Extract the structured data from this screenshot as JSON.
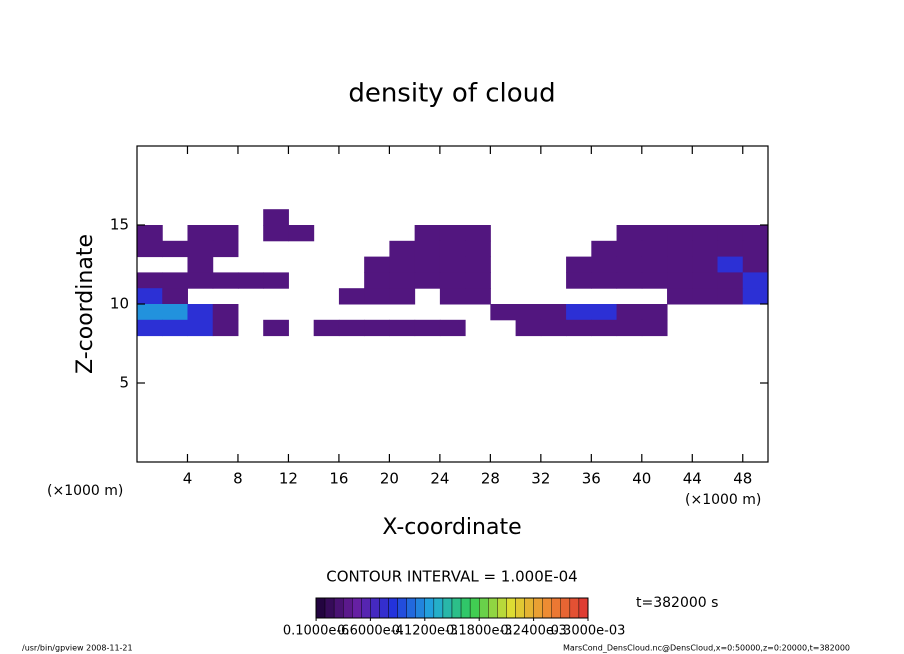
{
  "chart_data": {
    "type": "heatmap",
    "title": "density of cloud",
    "x_label": "X-coordinate",
    "y_label": "Z-coordinate",
    "x_unit": "(×1000 m)",
    "y_unit": "(×1000 m)",
    "xlim": [
      0,
      50
    ],
    "ylim": [
      0,
      20
    ],
    "xticks": [
      4,
      8,
      12,
      16,
      20,
      24,
      28,
      32,
      36,
      40,
      44,
      48
    ],
    "yticks": [
      5,
      10,
      15
    ],
    "x": [
      1,
      3,
      5,
      7,
      9,
      11,
      13,
      15,
      17,
      19,
      21,
      23,
      25,
      27,
      29,
      31,
      33,
      35,
      37,
      39,
      41,
      43,
      45,
      47,
      49
    ],
    "y": [
      15.5,
      14.5,
      13.5,
      12.5,
      11.5,
      10.5,
      9.5,
      8.5
    ],
    "values": [
      [
        null,
        null,
        null,
        null,
        null,
        3e-05,
        null,
        null,
        null,
        null,
        null,
        null,
        null,
        null,
        null,
        null,
        null,
        null,
        null,
        null,
        null,
        null,
        null,
        null,
        null
      ],
      [
        3e-05,
        null,
        3e-05,
        3e-05,
        null,
        3e-05,
        3e-05,
        null,
        null,
        null,
        null,
        3e-05,
        3e-05,
        3e-05,
        null,
        null,
        null,
        null,
        null,
        3e-05,
        3e-05,
        3e-05,
        3e-05,
        3e-05,
        3e-05
      ],
      [
        3e-05,
        3e-05,
        3e-05,
        3e-05,
        null,
        null,
        null,
        null,
        null,
        null,
        3e-05,
        3e-05,
        3e-05,
        3e-05,
        null,
        null,
        null,
        null,
        3e-05,
        3e-05,
        3e-05,
        3e-05,
        3e-05,
        3e-05,
        3e-05
      ],
      [
        null,
        null,
        3e-05,
        null,
        null,
        null,
        null,
        null,
        null,
        3e-05,
        3e-05,
        3e-05,
        3e-05,
        3e-05,
        null,
        null,
        null,
        3e-05,
        3e-05,
        3e-05,
        3e-05,
        3e-05,
        3e-05,
        8e-05,
        3e-05
      ],
      [
        3e-05,
        3e-05,
        3e-05,
        3e-05,
        3e-05,
        3e-05,
        null,
        null,
        null,
        3e-05,
        3e-05,
        3e-05,
        3e-05,
        3e-05,
        null,
        null,
        null,
        3e-05,
        3e-05,
        3e-05,
        3e-05,
        3e-05,
        3e-05,
        3e-05,
        8e-05
      ],
      [
        8e-05,
        3e-05,
        null,
        null,
        null,
        null,
        null,
        null,
        3e-05,
        3e-05,
        3e-05,
        null,
        3e-05,
        3e-05,
        null,
        null,
        null,
        null,
        null,
        null,
        null,
        3e-05,
        3e-05,
        3e-05,
        8e-05
      ],
      [
        0.00012,
        0.00012,
        8e-05,
        3e-05,
        null,
        null,
        null,
        null,
        null,
        null,
        null,
        null,
        null,
        null,
        3e-05,
        3e-05,
        3e-05,
        8e-05,
        8e-05,
        3e-05,
        3e-05,
        null,
        null,
        null,
        null
      ],
      [
        8e-05,
        8e-05,
        8e-05,
        3e-05,
        null,
        3e-05,
        null,
        3e-05,
        3e-05,
        3e-05,
        3e-05,
        3e-05,
        3e-05,
        null,
        null,
        3e-05,
        3e-05,
        3e-05,
        3e-05,
        3e-05,
        3e-05,
        null,
        null,
        null,
        null
      ]
    ],
    "colormap": [
      "#1a0033",
      "#6a1fa0",
      "#2233dd",
      "#22aadd",
      "#33cc55",
      "#dddd33",
      "#ee8833",
      "#dd3333"
    ],
    "contour_interval": "CONTOUR INTERVAL = 1.000E-04",
    "time_label": "t=382000 s",
    "colorbar": {
      "lim": [
        0,
        0.0003
      ],
      "ticks": [
        {
          "value": 1e-07,
          "label": "0.1000e-6"
        },
        {
          "value": 6e-05,
          "label": "0.6000e-4"
        },
        {
          "value": 0.00012,
          "label": "0.1200e-3"
        },
        {
          "value": 0.00018,
          "label": "0.1800e-3"
        },
        {
          "value": 0.00024,
          "label": "0.2400e-3"
        },
        {
          "value": 0.0003,
          "label": "0.3000e-03"
        }
      ]
    },
    "footer_left": "/usr/bin/gpview  2008-11-21",
    "footer_right": "MarsCond_DensCloud.nc@DensCloud,x=0:50000,z=0:20000,t=382000"
  }
}
